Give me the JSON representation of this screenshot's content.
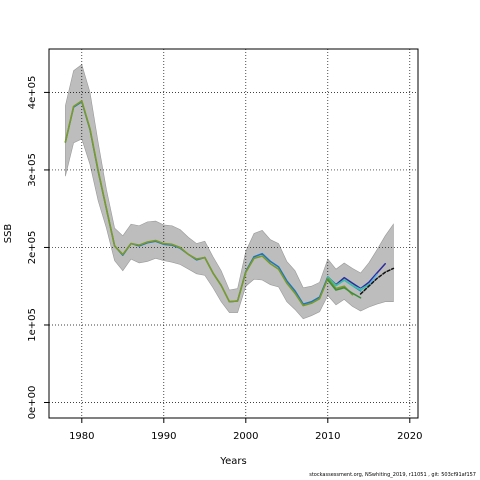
{
  "chart_data": {
    "type": "line",
    "xlabel": "Years",
    "ylabel": "SSB",
    "xlim": [
      1976,
      2021
    ],
    "ylim": [
      -20000,
      456000
    ],
    "x_ticks": [
      1980,
      1990,
      2000,
      2010,
      2020
    ],
    "y_ticks": [
      0,
      100000,
      200000,
      300000,
      400000
    ],
    "y_tick_labels": [
      "0e+00",
      "1e+05",
      "2e+05",
      "3e+05",
      "4e+05"
    ],
    "grid": true,
    "confidence_band": {
      "years": [
        1978,
        1979,
        1980,
        1981,
        1982,
        1983,
        1984,
        1985,
        1986,
        1987,
        1988,
        1989,
        1990,
        1991,
        1992,
        1993,
        1994,
        1995,
        1996,
        1997,
        1998,
        1999,
        2000,
        2001,
        2002,
        2003,
        2004,
        2005,
        2006,
        2007,
        2008,
        2009,
        2010,
        2011,
        2012,
        2013,
        2014,
        2015,
        2016,
        2017,
        2018
      ],
      "upper": [
        383000,
        428000,
        436000,
        400000,
        335000,
        275000,
        225000,
        215000,
        230000,
        228000,
        233000,
        234000,
        229000,
        228000,
        223000,
        213000,
        205000,
        208000,
        188000,
        170000,
        145000,
        147000,
        195000,
        218000,
        222000,
        210000,
        205000,
        182000,
        170000,
        148000,
        150000,
        155000,
        185000,
        172000,
        180000,
        173000,
        167000,
        180000,
        197000,
        215000,
        230000
      ],
      "lower": [
        292000,
        335000,
        340000,
        307000,
        260000,
        225000,
        183000,
        170000,
        185000,
        180000,
        182000,
        186000,
        183000,
        181000,
        178000,
        172000,
        166000,
        164000,
        148000,
        130000,
        116000,
        116000,
        150000,
        159000,
        158000,
        152000,
        149000,
        130000,
        120000,
        108000,
        112000,
        117000,
        138000,
        126000,
        133000,
        124000,
        118000,
        123000,
        127000,
        130000,
        130000
      ]
    },
    "series": [
      {
        "values": [
          [
            1978,
            336000
          ],
          [
            1979,
            381000
          ],
          [
            1980,
            388000
          ],
          [
            1981,
            352000
          ],
          [
            1982,
            298000
          ],
          [
            1983,
            250000
          ],
          [
            1984,
            202000
          ],
          [
            1985,
            190000
          ],
          [
            1986,
            205000
          ],
          [
            1987,
            202000
          ],
          [
            1988,
            206000
          ],
          [
            1989,
            208000
          ],
          [
            1990,
            204000
          ],
          [
            1991,
            203000
          ],
          [
            1992,
            199000
          ],
          [
            1993,
            191000
          ],
          [
            1994,
            184000
          ],
          [
            1995,
            187000
          ],
          [
            1996,
            167000
          ],
          [
            1997,
            151000
          ],
          [
            1998,
            130000
          ],
          [
            1999,
            131000
          ],
          [
            2000,
            169000
          ],
          [
            2001,
            188000
          ],
          [
            2002,
            192000
          ],
          [
            2003,
            182000
          ],
          [
            2004,
            175000
          ],
          [
            2005,
            157000
          ],
          [
            2006,
            144000
          ],
          [
            2007,
            127000
          ],
          [
            2008,
            130000
          ],
          [
            2009,
            136000
          ],
          [
            2010,
            162000
          ],
          [
            2011,
            151000
          ],
          [
            2012,
            158000
          ],
          [
            2013,
            151000
          ],
          [
            2014,
            144000
          ]
        ],
        "color": "#1a75c4"
      },
      {
        "values": [
          [
            2010,
            162000
          ],
          [
            2011,
            152000
          ],
          [
            2012,
            161000
          ],
          [
            2013,
            154000
          ],
          [
            2014,
            147000
          ],
          [
            2015,
            155000
          ],
          [
            2016,
            167000
          ],
          [
            2017,
            179000
          ]
        ],
        "color": "#2b2b9e"
      },
      {
        "values": [
          [
            2010,
            162000
          ],
          [
            2011,
            151000
          ],
          [
            2012,
            158000
          ],
          [
            2013,
            151000
          ],
          [
            2014,
            146000
          ],
          [
            2015,
            152000
          ],
          [
            2016,
            165000
          ]
        ],
        "color": "#5ab4e6"
      },
      {
        "values": [
          [
            2010,
            162000
          ],
          [
            2011,
            151000
          ],
          [
            2012,
            158000
          ],
          [
            2013,
            151000
          ],
          [
            2014,
            145000
          ],
          [
            2015,
            152000
          ]
        ],
        "color": "#3bbfa0"
      },
      {
        "values": [
          [
            1978,
            336000
          ],
          [
            1979,
            382000
          ],
          [
            1980,
            389000
          ],
          [
            1981,
            353000
          ],
          [
            1982,
            299000
          ],
          [
            1983,
            250000
          ],
          [
            1984,
            202000
          ],
          [
            1985,
            191000
          ],
          [
            1986,
            205000
          ],
          [
            1987,
            203000
          ],
          [
            1988,
            207000
          ],
          [
            1989,
            209000
          ],
          [
            1990,
            205000
          ],
          [
            1991,
            204000
          ],
          [
            1992,
            200000
          ],
          [
            1993,
            191000
          ],
          [
            1994,
            185000
          ],
          [
            1995,
            187000
          ],
          [
            1996,
            167000
          ],
          [
            1997,
            151000
          ],
          [
            1998,
            130000
          ],
          [
            1999,
            131000
          ],
          [
            2000,
            168000
          ],
          [
            2001,
            186000
          ],
          [
            2002,
            189000
          ],
          [
            2003,
            179000
          ],
          [
            2004,
            172000
          ],
          [
            2005,
            154000
          ],
          [
            2006,
            141000
          ],
          [
            2007,
            125000
          ],
          [
            2008,
            128000
          ],
          [
            2009,
            134000
          ],
          [
            2010,
            160000
          ],
          [
            2011,
            147000
          ],
          [
            2012,
            150000
          ],
          [
            2013,
            139000
          ]
        ],
        "color": "#7a9a2a"
      },
      {
        "values": [
          [
            2010,
            158000
          ],
          [
            2011,
            145000
          ],
          [
            2012,
            148000
          ],
          [
            2013,
            141000
          ],
          [
            2014,
            135000
          ]
        ],
        "color": "#3c8c3c"
      },
      {
        "values": [
          [
            2014,
            140000
          ],
          [
            2015,
            150000
          ],
          [
            2016,
            160000
          ],
          [
            2017,
            168000
          ],
          [
            2018,
            173000
          ]
        ],
        "color": "#111111",
        "dashed": true
      }
    ]
  },
  "footer": "stockassessment.org, NSwhiting_2019, r11051 , git: 503cf91af157",
  "colors": {
    "band": "#bdbdbd",
    "band_edge": "#999999",
    "grid": "#000000",
    "background": "#ffffff"
  }
}
